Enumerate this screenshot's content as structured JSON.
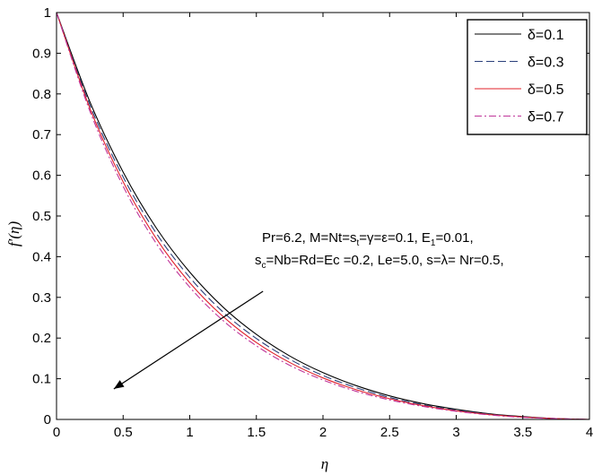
{
  "chart_data": {
    "type": "line",
    "title": "",
    "xlabel": "η",
    "ylabel": "f′(η)",
    "xlim": [
      0,
      4
    ],
    "ylim": [
      0,
      1
    ],
    "xticks": [
      0,
      0.5,
      1,
      1.5,
      2,
      2.5,
      3,
      3.5,
      4
    ],
    "xtick_labels": [
      "0",
      "0.5",
      "1",
      "1.5",
      "2",
      "2.5",
      "3",
      "3.5",
      "4"
    ],
    "yticks": [
      0,
      0.1,
      0.2,
      0.3,
      0.4,
      0.5,
      0.6,
      0.7,
      0.8,
      0.9,
      1
    ],
    "ytick_labels": [
      "0",
      "0.1",
      "0.2",
      "0.3",
      "0.4",
      "0.5",
      "0.6",
      "0.7",
      "0.8",
      "0.9",
      "1"
    ],
    "grid": false,
    "legend_position": "top-right",
    "x": [
      0,
      0.25,
      0.5,
      0.75,
      1,
      1.25,
      1.5,
      1.75,
      2,
      2.25,
      2.5,
      2.75,
      3,
      3.25,
      3.5,
      3.75,
      4
    ],
    "series": [
      {
        "name": "δ=0.1",
        "color": "#000000",
        "dash": "solid",
        "values": [
          1.0,
          0.781,
          0.608,
          0.47,
          0.362,
          0.276,
          0.209,
          0.156,
          0.115,
          0.083,
          0.058,
          0.039,
          0.025,
          0.014,
          0.007,
          0.002,
          0.0
        ]
      },
      {
        "name": "δ=0.3",
        "color": "#2a3f7a",
        "dash": "dashed",
        "values": [
          1.0,
          0.773,
          0.596,
          0.457,
          0.349,
          0.264,
          0.199,
          0.148,
          0.108,
          0.078,
          0.054,
          0.036,
          0.023,
          0.013,
          0.006,
          0.002,
          0.0
        ]
      },
      {
        "name": "δ=0.5",
        "color": "#e0202a",
        "dash": "solid",
        "values": [
          1.0,
          0.765,
          0.584,
          0.444,
          0.336,
          0.253,
          0.189,
          0.14,
          0.102,
          0.073,
          0.051,
          0.034,
          0.021,
          0.012,
          0.006,
          0.002,
          0.0
        ]
      },
      {
        "name": "δ=0.7",
        "color": "#c0359a",
        "dash": "dashdot",
        "values": [
          1.0,
          0.758,
          0.573,
          0.432,
          0.325,
          0.243,
          0.181,
          0.133,
          0.097,
          0.069,
          0.048,
          0.032,
          0.02,
          0.011,
          0.005,
          0.002,
          0.0
        ]
      }
    ],
    "annotation": {
      "line1": [
        {
          "t": "Pr=6.2, M=Nt=s"
        },
        {
          "t": "t",
          "sub": true
        },
        {
          "t": "=γ=ε=0.1, E"
        },
        {
          "t": "1",
          "sub": true
        },
        {
          "t": "=0.01,"
        }
      ],
      "line2": [
        {
          "t": "s"
        },
        {
          "t": "c",
          "sub": true
        },
        {
          "t": "=Nb=Rd=Ec =0.2, Le=5.0, s=λ= Nr=0.5,"
        }
      ],
      "arrow_from": [
        1.55,
        0.315
      ],
      "arrow_to": [
        0.43,
        0.075
      ]
    }
  }
}
